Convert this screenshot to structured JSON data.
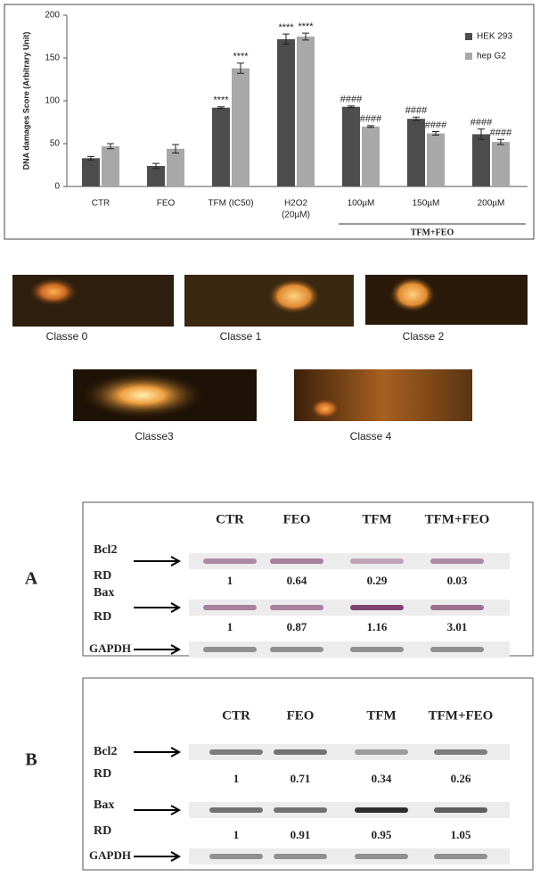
{
  "chart_data": {
    "type": "bar",
    "ylabel": "DNA damages Score (Arbitrary Unit)",
    "categories": [
      [
        "CTR"
      ],
      [
        "FEO"
      ],
      [
        "TFM (IC50)"
      ],
      [
        "H2O2",
        "(20µM)"
      ],
      [
        "100µM"
      ],
      [
        "150µM"
      ],
      [
        "200µM"
      ]
    ],
    "group_label": "TFM+FEO",
    "series": [
      {
        "name": "HEK 293",
        "color": "#4d4d4d",
        "values": [
          33,
          24,
          92,
          172,
          93,
          79,
          61
        ],
        "errors": [
          2,
          3,
          1,
          6,
          1,
          2,
          6
        ],
        "annotations": [
          null,
          null,
          "****",
          "****",
          "####",
          "####",
          "####"
        ]
      },
      {
        "name": "hep G2",
        "color": "#a8a8a8",
        "values": [
          47,
          44,
          138,
          175,
          70,
          62,
          52
        ],
        "errors": [
          3,
          5,
          6,
          4,
          1,
          2,
          3
        ],
        "annotations": [
          null,
          null,
          "****",
          "****",
          "####",
          "####",
          "####"
        ]
      }
    ],
    "ylim": [
      0,
      200
    ],
    "yticks": [
      0,
      50,
      100,
      150,
      200
    ],
    "grid": false,
    "legend": "top-right"
  },
  "comet": {
    "classes": [
      "Classe 0",
      "Classe 1",
      "Classe 2",
      "Classe3",
      "Classe 4"
    ]
  },
  "blots": [
    {
      "panel": "A",
      "lanes": [
        "CTR",
        "FEO",
        "TFM",
        "TFM+FEO"
      ],
      "rows": [
        {
          "label": "Bcl2",
          "rd_label": "RD",
          "rd": [
            1,
            0.64,
            0.29,
            0.03
          ]
        },
        {
          "label": "Bax",
          "rd_label": "RD",
          "rd": [
            1,
            0.87,
            1.16,
            3.01
          ]
        }
      ],
      "control": "GAPDH"
    },
    {
      "panel": "B",
      "lanes": [
        "CTR",
        "FEO",
        "TFM",
        "TFM+FEO"
      ],
      "rows": [
        {
          "label": "Bcl2",
          "rd_label": "RD",
          "rd": [
            1,
            0.71,
            0.34,
            0.26
          ]
        },
        {
          "label": "Bax",
          "rd_label": "RD",
          "rd": [
            1,
            0.91,
            0.95,
            1.05
          ]
        }
      ],
      "control": "GAPDH"
    }
  ]
}
